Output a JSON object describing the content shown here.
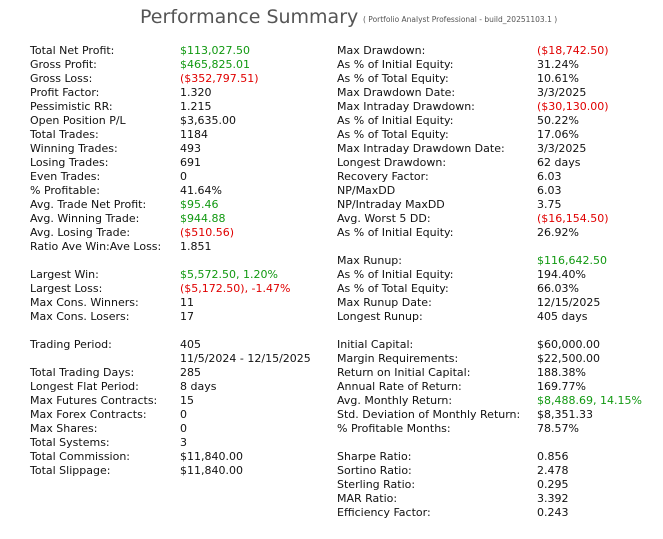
{
  "header": {
    "title": "Performance Summary",
    "subtitle": "( Portfolio Analyst Professional - build_20251103.1 )"
  },
  "columns": [
    {
      "sections": [
        {
          "rows": [
            {
              "label": "Total Net Profit:",
              "value": "$113,027.50",
              "color": "green"
            },
            {
              "label": "Gross Profit:",
              "value": "$465,825.01",
              "color": "green"
            },
            {
              "label": "Gross Loss:",
              "value": "($352,797.51)",
              "color": "red"
            },
            {
              "label": "Profit Factor:",
              "value": "1.320"
            },
            {
              "label": "Pessimistic RR:",
              "value": "1.215"
            },
            {
              "label": "Open Position P/L",
              "value": "$3,635.00"
            },
            {
              "label": "Total Trades:",
              "value": "1184"
            },
            {
              "label": "Winning Trades:",
              "value": "493"
            },
            {
              "label": "Losing Trades:",
              "value": "691"
            },
            {
              "label": "Even Trades:",
              "value": "0"
            },
            {
              "label": "% Profitable:",
              "value": "41.64%"
            },
            {
              "label": "Avg. Trade Net Profit:",
              "value": "$95.46",
              "color": "green"
            },
            {
              "label": "Avg. Winning Trade:",
              "value": "$944.88",
              "color": "green"
            },
            {
              "label": "Avg. Losing Trade:",
              "value": "($510.56)",
              "color": "red"
            },
            {
              "label": "Ratio Ave Win:Ave Loss:",
              "value": "1.851"
            }
          ]
        },
        {
          "rows": [
            {
              "label": "Largest Win:",
              "value": "$5,572.50, 1.20%",
              "color": "green"
            },
            {
              "label": "Largest Loss:",
              "value": "($5,172.50), -1.47%",
              "color": "red"
            },
            {
              "label": "Max Cons. Winners:",
              "value": "11"
            },
            {
              "label": "Max Cons. Losers:",
              "value": "17"
            }
          ]
        },
        {
          "rows": [
            {
              "label": "Trading Period:",
              "value": "405"
            },
            {
              "value": "11/5/2024 - 12/15/2025"
            },
            {
              "label": "Total Trading Days:",
              "value": "285"
            },
            {
              "label": "Longest Flat Period:",
              "value": "8 days"
            },
            {
              "label": "Max Futures Contracts:",
              "value": "15"
            },
            {
              "label": "Max Forex Contracts:",
              "value": "0"
            },
            {
              "label": "Max Shares:",
              "value": "0"
            },
            {
              "label": "Total Systems:",
              "value": "3"
            },
            {
              "label": "Total Commission:",
              "value": "$11,840.00"
            },
            {
              "label": "Total Slippage:",
              "value": "$11,840.00"
            }
          ]
        }
      ]
    },
    {
      "sections": [
        {
          "rows": [
            {
              "label": "Max Drawdown:",
              "value": "($18,742.50)",
              "color": "red"
            },
            {
              "label": "As % of Initial Equity:",
              "value": "31.24%"
            },
            {
              "label": "As % of Total Equity:",
              "value": "10.61%"
            },
            {
              "label": "Max Drawdown Date:",
              "value": "3/3/2025"
            },
            {
              "label": "Max Intraday Drawdown:",
              "value": "($30,130.00)",
              "color": "red"
            },
            {
              "label": "As % of Initial Equity:",
              "value": "50.22%"
            },
            {
              "label": "As % of Total Equity:",
              "value": "17.06%"
            },
            {
              "label": "Max Intraday Drawdown Date:",
              "value": "3/3/2025"
            },
            {
              "label": "Longest Drawdown:",
              "value": "62 days"
            },
            {
              "label": "Recovery Factor:",
              "value": "6.03"
            },
            {
              "label": "NP/MaxDD",
              "value": "6.03"
            },
            {
              "label": "NP/Intraday MaxDD",
              "value": "3.75"
            },
            {
              "label": "Avg. Worst 5 DD:",
              "value": "($16,154.50)",
              "color": "red"
            },
            {
              "label": "As % of Initial Equity:",
              "value": "26.92%"
            }
          ]
        },
        {
          "rows": [
            {
              "label": "Max Runup:",
              "value": "$116,642.50",
              "color": "green"
            },
            {
              "label": "As % of Initial Equity:",
              "value": "194.40%"
            },
            {
              "label": "As % of Total Equity:",
              "value": "66.03%"
            },
            {
              "label": "Max Runup Date:",
              "value": "12/15/2025"
            },
            {
              "label": "Longest Runup:",
              "value": "405 days"
            }
          ]
        },
        {
          "rows": [
            {
              "label": "Initial Capital:",
              "value": "$60,000.00"
            },
            {
              "label": "Margin Requirements:",
              "value": "$22,500.00"
            },
            {
              "label": "Return on Initial Capital:",
              "value": "188.38%"
            },
            {
              "label": "Annual Rate of Return:",
              "value": "169.77%"
            },
            {
              "label": "Avg. Monthly Return:",
              "value": "$8,488.69, 14.15%",
              "color": "green"
            },
            {
              "label": "Std. Deviation of Monthly Return:",
              "value": "$8,351.33"
            },
            {
              "label": "% Profitable Months:",
              "value": "78.57%"
            }
          ]
        },
        {
          "rows": [
            {
              "label": "Sharpe Ratio:",
              "value": "0.856"
            },
            {
              "label": "Sortino Ratio:",
              "value": "2.478"
            },
            {
              "label": "Sterling Ratio:",
              "value": "0.295"
            },
            {
              "label": "MAR Ratio:",
              "value": "3.392"
            },
            {
              "label": "Efficiency Factor:",
              "value": "0.243"
            }
          ]
        }
      ]
    }
  ]
}
